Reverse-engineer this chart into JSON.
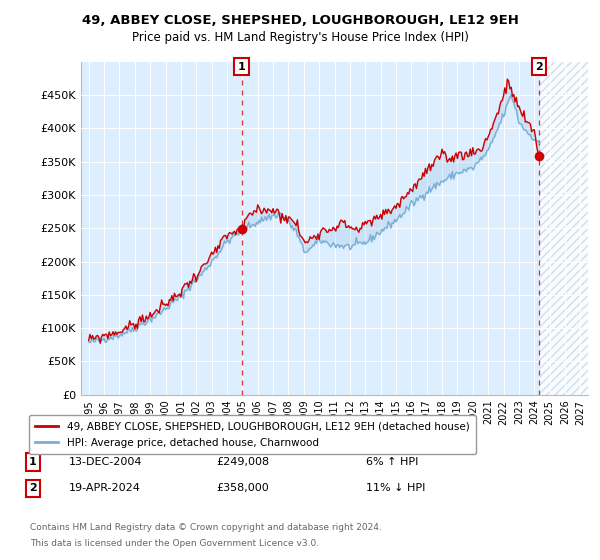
{
  "title": "49, ABBEY CLOSE, SHEPSHED, LOUGHBOROUGH, LE12 9EH",
  "subtitle": "Price paid vs. HM Land Registry's House Price Index (HPI)",
  "legend_label_red": "49, ABBEY CLOSE, SHEPSHED, LOUGHBOROUGH, LE12 9EH (detached house)",
  "legend_label_blue": "HPI: Average price, detached house, Charnwood",
  "footer1": "Contains HM Land Registry data © Crown copyright and database right 2024.",
  "footer2": "This data is licensed under the Open Government Licence v3.0.",
  "annotation1_date": "13-DEC-2004",
  "annotation1_price": "£249,008",
  "annotation1_hpi": "6% ↑ HPI",
  "annotation2_date": "19-APR-2024",
  "annotation2_price": "£358,000",
  "annotation2_hpi": "11% ↓ HPI",
  "xlim_start": 1994.5,
  "xlim_end": 2027.5,
  "ylim_bottom": 0,
  "ylim_top": 500000,
  "yticks": [
    0,
    50000,
    100000,
    150000,
    200000,
    250000,
    300000,
    350000,
    400000,
    450000
  ],
  "ytick_labels": [
    "£0",
    "£50K",
    "£100K",
    "£150K",
    "£200K",
    "£250K",
    "£300K",
    "£350K",
    "£400K",
    "£450K"
  ],
  "xticks": [
    1995,
    1996,
    1997,
    1998,
    1999,
    2000,
    2001,
    2002,
    2003,
    2004,
    2005,
    2006,
    2007,
    2008,
    2009,
    2010,
    2011,
    2012,
    2013,
    2014,
    2015,
    2016,
    2017,
    2018,
    2019,
    2020,
    2021,
    2022,
    2023,
    2024,
    2025,
    2026,
    2027
  ],
  "red_color": "#cc0000",
  "blue_color": "#7aafd4",
  "bg_color": "#ddeeff",
  "hatch_future_color": "#c8d8e8",
  "annotation_box_color": "#cc0000",
  "sale1_x": 2004.96,
  "sale1_y": 249008,
  "sale2_x": 2024.3,
  "sale2_y": 358000,
  "future_start": 2024.4
}
